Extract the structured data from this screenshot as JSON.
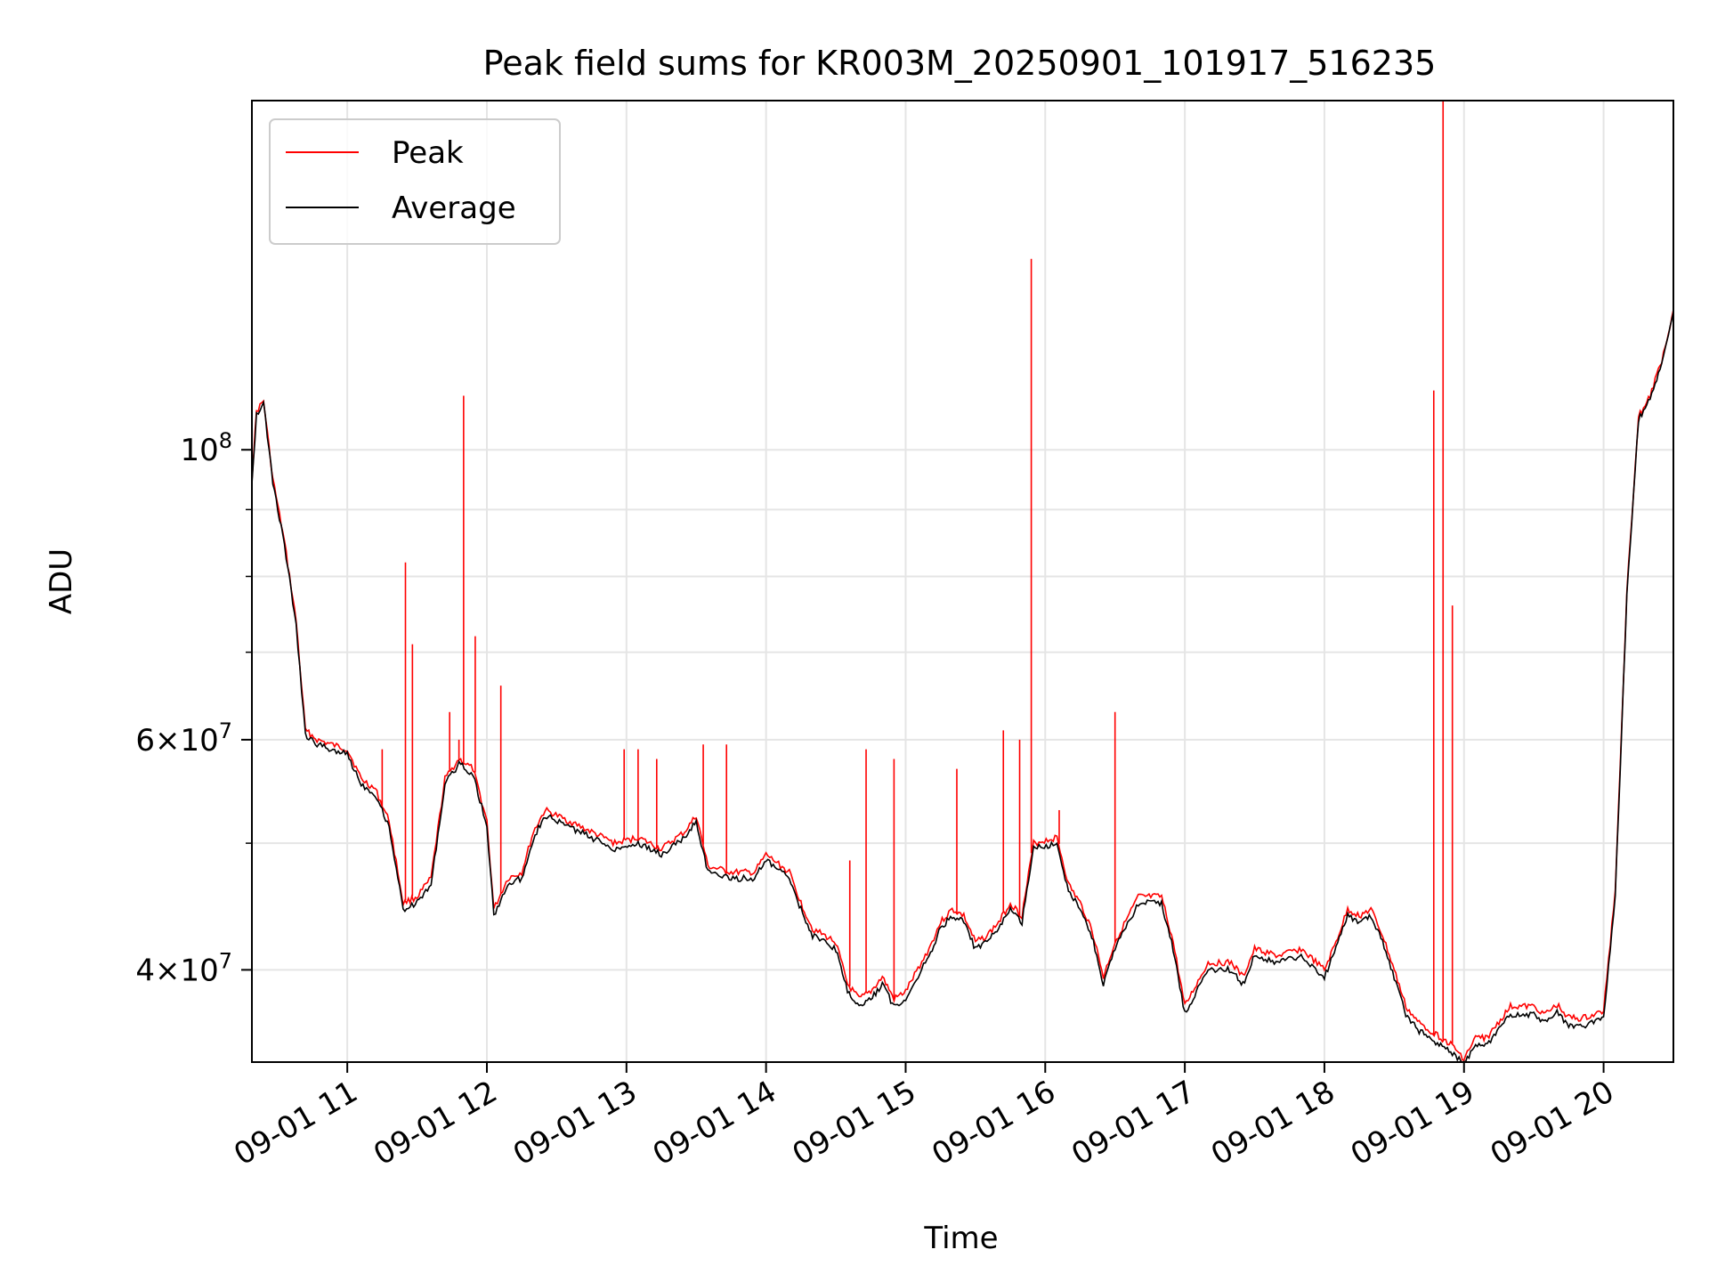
{
  "chart_data": {
    "type": "line",
    "title": "Peak field sums for KR003M_20250901_101917_516235",
    "xlabel": "Time",
    "ylabel": "ADU",
    "x_scale": "time",
    "y_scale": "log",
    "xlim": [
      "2025-09-01 10:19",
      "2025-09-01 20:30"
    ],
    "ylim": [
      34000000,
      185000000
    ],
    "grid": true,
    "legend_position": "upper left",
    "x_ticks": [
      {
        "value": "2025-09-01 11:00",
        "label": "09-01 11"
      },
      {
        "value": "2025-09-01 12:00",
        "label": "09-01 12"
      },
      {
        "value": "2025-09-01 13:00",
        "label": "09-01 13"
      },
      {
        "value": "2025-09-01 14:00",
        "label": "09-01 14"
      },
      {
        "value": "2025-09-01 15:00",
        "label": "09-01 15"
      },
      {
        "value": "2025-09-01 16:00",
        "label": "09-01 16"
      },
      {
        "value": "2025-09-01 17:00",
        "label": "09-01 17"
      },
      {
        "value": "2025-09-01 18:00",
        "label": "09-01 18"
      },
      {
        "value": "2025-09-01 19:00",
        "label": "09-01 19"
      },
      {
        "value": "2025-09-01 20:00",
        "label": "09-01 20"
      }
    ],
    "y_ticks": [
      {
        "value": 40000000,
        "mant": "4",
        "exp": "7"
      },
      {
        "value": 60000000,
        "mant": "6",
        "exp": "7"
      },
      {
        "value": 100000000,
        "mant": "",
        "exp": "8"
      }
    ],
    "y_minor_ticks": [
      50000000,
      70000000,
      80000000,
      90000000
    ],
    "series": [
      {
        "name": "Peak",
        "color": "#ff0000",
        "baseline": [
          [
            "2025-09-01 10:19",
            95000000
          ],
          [
            "2025-09-01 10:21",
            107000000
          ],
          [
            "2025-09-01 10:24",
            109000000
          ],
          [
            "2025-09-01 10:28",
            95000000
          ],
          [
            "2025-09-01 10:33",
            85000000
          ],
          [
            "2025-09-01 10:38",
            74000000
          ],
          [
            "2025-09-01 10:42",
            61000000
          ],
          [
            "2025-09-01 10:47",
            60000000
          ],
          [
            "2025-09-01 10:53",
            59500000
          ],
          [
            "2025-09-01 11:00",
            59000000
          ],
          [
            "2025-09-01 11:06",
            56000000
          ],
          [
            "2025-09-01 11:12",
            55000000
          ],
          [
            "2025-09-01 11:18",
            52000000
          ],
          [
            "2025-09-01 11:24",
            45000000
          ],
          [
            "2025-09-01 11:30",
            45500000
          ],
          [
            "2025-09-01 11:36",
            47000000
          ],
          [
            "2025-09-01 11:42",
            56000000
          ],
          [
            "2025-09-01 11:48",
            58000000
          ],
          [
            "2025-09-01 11:54",
            57000000
          ],
          [
            "2025-09-01 12:00",
            52000000
          ],
          [
            "2025-09-01 12:03",
            44500000
          ],
          [
            "2025-09-01 12:09",
            47000000
          ],
          [
            "2025-09-01 12:15",
            47500000
          ],
          [
            "2025-09-01 12:20",
            51000000
          ],
          [
            "2025-09-01 12:25",
            53000000
          ],
          [
            "2025-09-01 12:35",
            52000000
          ],
          [
            "2025-09-01 12:45",
            51000000
          ],
          [
            "2025-09-01 12:55",
            50000000
          ],
          [
            "2025-09-01 13:05",
            50500000
          ],
          [
            "2025-09-01 13:15",
            49500000
          ],
          [
            "2025-09-01 13:25",
            51000000
          ],
          [
            "2025-09-01 13:30",
            52500000
          ],
          [
            "2025-09-01 13:35",
            48000000
          ],
          [
            "2025-09-01 13:45",
            47500000
          ],
          [
            "2025-09-01 13:55",
            47500000
          ],
          [
            "2025-09-01 14:00",
            49000000
          ],
          [
            "2025-09-01 14:10",
            47500000
          ],
          [
            "2025-09-01 14:15",
            45000000
          ],
          [
            "2025-09-01 14:20",
            43000000
          ],
          [
            "2025-09-01 14:30",
            42000000
          ],
          [
            "2025-09-01 14:35",
            39000000
          ],
          [
            "2025-09-01 14:40",
            38000000
          ],
          [
            "2025-09-01 14:45",
            38500000
          ],
          [
            "2025-09-01 14:50",
            39500000
          ],
          [
            "2025-09-01 14:55",
            38000000
          ],
          [
            "2025-09-01 15:00",
            38500000
          ],
          [
            "2025-09-01 15:10",
            41500000
          ],
          [
            "2025-09-01 15:15",
            43500000
          ],
          [
            "2025-09-01 15:20",
            44500000
          ],
          [
            "2025-09-01 15:25",
            44000000
          ],
          [
            "2025-09-01 15:30",
            42000000
          ],
          [
            "2025-09-01 15:35",
            42500000
          ],
          [
            "2025-09-01 15:40",
            43500000
          ],
          [
            "2025-09-01 15:45",
            45000000
          ],
          [
            "2025-09-01 15:50",
            44000000
          ],
          [
            "2025-09-01 15:55",
            50000000
          ],
          [
            "2025-09-01 16:05",
            50500000
          ],
          [
            "2025-09-01 16:10",
            46500000
          ],
          [
            "2025-09-01 16:15",
            45000000
          ],
          [
            "2025-09-01 16:20",
            43000000
          ],
          [
            "2025-09-01 16:25",
            39500000
          ],
          [
            "2025-09-01 16:30",
            42000000
          ],
          [
            "2025-09-01 16:40",
            45500000
          ],
          [
            "2025-09-01 16:50",
            45500000
          ],
          [
            "2025-09-01 16:55",
            42000000
          ],
          [
            "2025-09-01 17:00",
            37500000
          ],
          [
            "2025-09-01 17:05",
            39000000
          ],
          [
            "2025-09-01 17:10",
            40500000
          ],
          [
            "2025-09-01 17:20",
            40500000
          ],
          [
            "2025-09-01 17:25",
            39500000
          ],
          [
            "2025-09-01 17:30",
            41500000
          ],
          [
            "2025-09-01 17:40",
            41000000
          ],
          [
            "2025-09-01 17:50",
            41500000
          ],
          [
            "2025-09-01 18:00",
            40000000
          ],
          [
            "2025-09-01 18:05",
            42000000
          ],
          [
            "2025-09-01 18:10",
            44500000
          ],
          [
            "2025-09-01 18:15",
            44000000
          ],
          [
            "2025-09-01 18:20",
            44500000
          ],
          [
            "2025-09-01 18:25",
            42500000
          ],
          [
            "2025-09-01 18:30",
            40000000
          ],
          [
            "2025-09-01 18:35",
            37500000
          ],
          [
            "2025-09-01 18:40",
            36500000
          ],
          [
            "2025-09-01 18:45",
            36000000
          ],
          [
            "2025-09-01 18:50",
            35500000
          ],
          [
            "2025-09-01 18:55",
            35000000
          ],
          [
            "2025-09-01 19:00",
            34200000
          ],
          [
            "2025-09-01 19:05",
            35500000
          ],
          [
            "2025-09-01 19:10",
            35500000
          ],
          [
            "2025-09-01 19:15",
            36500000
          ],
          [
            "2025-09-01 19:20",
            37500000
          ],
          [
            "2025-09-01 19:30",
            37500000
          ],
          [
            "2025-09-01 19:35",
            37000000
          ],
          [
            "2025-09-01 19:40",
            37600000
          ],
          [
            "2025-09-01 19:45",
            36800000
          ],
          [
            "2025-09-01 19:50",
            36700000
          ],
          [
            "2025-09-01 19:55",
            36900000
          ],
          [
            "2025-09-01 20:00",
            37200000
          ],
          [
            "2025-09-01 20:05",
            46000000
          ],
          [
            "2025-09-01 20:10",
            78000000
          ],
          [
            "2025-09-01 20:15",
            106000000
          ],
          [
            "2025-09-01 20:20",
            110000000
          ],
          [
            "2025-09-01 20:25",
            117000000
          ],
          [
            "2025-09-01 20:30",
            128000000
          ]
        ],
        "spikes": [
          [
            "2025-09-01 11:15",
            59000000
          ],
          [
            "2025-09-01 11:25",
            82000000
          ],
          [
            "2025-09-01 11:28",
            71000000
          ],
          [
            "2025-09-01 11:44",
            63000000
          ],
          [
            "2025-09-01 11:48",
            60000000
          ],
          [
            "2025-09-01 11:50",
            110000000
          ],
          [
            "2025-09-01 11:55",
            72000000
          ],
          [
            "2025-09-01 12:06",
            66000000
          ],
          [
            "2025-09-01 12:59",
            59000000
          ],
          [
            "2025-09-01 13:05",
            59000000
          ],
          [
            "2025-09-01 13:13",
            58000000
          ],
          [
            "2025-09-01 13:33",
            59500000
          ],
          [
            "2025-09-01 13:43",
            59500000
          ],
          [
            "2025-09-01 14:36",
            48500000
          ],
          [
            "2025-09-01 14:43",
            59000000
          ],
          [
            "2025-09-01 14:55",
            58000000
          ],
          [
            "2025-09-01 15:22",
            57000000
          ],
          [
            "2025-09-01 15:42",
            61000000
          ],
          [
            "2025-09-01 15:49",
            60000000
          ],
          [
            "2025-09-01 15:54",
            140000000
          ],
          [
            "2025-09-01 16:06",
            53000000
          ],
          [
            "2025-09-01 16:30",
            63000000
          ],
          [
            "2025-09-01 18:47",
            111000000
          ],
          [
            "2025-09-01 18:51",
            185000000
          ],
          [
            "2025-09-01 18:55",
            76000000
          ]
        ]
      },
      {
        "name": "Average",
        "color": "#000000",
        "baseline": [
          [
            "2025-09-01 10:19",
            94500000
          ],
          [
            "2025-09-01 10:21",
            106500000
          ],
          [
            "2025-09-01 10:24",
            108500000
          ],
          [
            "2025-09-01 10:28",
            94500000
          ],
          [
            "2025-09-01 10:33",
            84500000
          ],
          [
            "2025-09-01 10:38",
            73500000
          ],
          [
            "2025-09-01 10:42",
            60500000
          ],
          [
            "2025-09-01 10:47",
            59500000
          ],
          [
            "2025-09-01 10:53",
            59000000
          ],
          [
            "2025-09-01 11:00",
            58500000
          ],
          [
            "2025-09-01 11:06",
            55500000
          ],
          [
            "2025-09-01 11:12",
            54500000
          ],
          [
            "2025-09-01 11:18",
            51500000
          ],
          [
            "2025-09-01 11:24",
            44500000
          ],
          [
            "2025-09-01 11:30",
            45000000
          ],
          [
            "2025-09-01 11:36",
            46500000
          ],
          [
            "2025-09-01 11:42",
            55500000
          ],
          [
            "2025-09-01 11:48",
            57500000
          ],
          [
            "2025-09-01 11:54",
            56500000
          ],
          [
            "2025-09-01 12:00",
            51500000
          ],
          [
            "2025-09-01 12:03",
            44000000
          ],
          [
            "2025-09-01 12:09",
            46500000
          ],
          [
            "2025-09-01 12:15",
            47000000
          ],
          [
            "2025-09-01 12:20",
            50500000
          ],
          [
            "2025-09-01 12:25",
            52500000
          ],
          [
            "2025-09-01 12:35",
            51500000
          ],
          [
            "2025-09-01 12:45",
            50500000
          ],
          [
            "2025-09-01 12:55",
            49500000
          ],
          [
            "2025-09-01 13:05",
            50000000
          ],
          [
            "2025-09-01 13:15",
            49000000
          ],
          [
            "2025-09-01 13:25",
            50500000
          ],
          [
            "2025-09-01 13:30",
            52000000
          ],
          [
            "2025-09-01 13:35",
            47500000
          ],
          [
            "2025-09-01 13:45",
            47000000
          ],
          [
            "2025-09-01 13:55",
            47000000
          ],
          [
            "2025-09-01 14:00",
            48500000
          ],
          [
            "2025-09-01 14:10",
            47000000
          ],
          [
            "2025-09-01 14:15",
            44500000
          ],
          [
            "2025-09-01 14:20",
            42500000
          ],
          [
            "2025-09-01 14:30",
            41500000
          ],
          [
            "2025-09-01 14:35",
            38500000
          ],
          [
            "2025-09-01 14:40",
            37500000
          ],
          [
            "2025-09-01 14:45",
            38000000
          ],
          [
            "2025-09-01 14:50",
            39000000
          ],
          [
            "2025-09-01 14:55",
            37500000
          ],
          [
            "2025-09-01 15:00",
            38000000
          ],
          [
            "2025-09-01 15:10",
            41000000
          ],
          [
            "2025-09-01 15:15",
            43000000
          ],
          [
            "2025-09-01 15:20",
            44000000
          ],
          [
            "2025-09-01 15:25",
            43500000
          ],
          [
            "2025-09-01 15:30",
            41500000
          ],
          [
            "2025-09-01 15:35",
            42000000
          ],
          [
            "2025-09-01 15:40",
            43000000
          ],
          [
            "2025-09-01 15:45",
            44500000
          ],
          [
            "2025-09-01 15:50",
            43500000
          ],
          [
            "2025-09-01 15:55",
            49500000
          ],
          [
            "2025-09-01 16:05",
            50000000
          ],
          [
            "2025-09-01 16:10",
            46000000
          ],
          [
            "2025-09-01 16:15",
            44500000
          ],
          [
            "2025-09-01 16:20",
            42500000
          ],
          [
            "2025-09-01 16:25",
            39000000
          ],
          [
            "2025-09-01 16:30",
            41500000
          ],
          [
            "2025-09-01 16:40",
            45000000
          ],
          [
            "2025-09-01 16:50",
            45000000
          ],
          [
            "2025-09-01 16:55",
            41500000
          ],
          [
            "2025-09-01 17:00",
            37000000
          ],
          [
            "2025-09-01 17:05",
            38500000
          ],
          [
            "2025-09-01 17:10",
            40000000
          ],
          [
            "2025-09-01 17:20",
            40000000
          ],
          [
            "2025-09-01 17:25",
            39000000
          ],
          [
            "2025-09-01 17:30",
            41000000
          ],
          [
            "2025-09-01 17:40",
            40500000
          ],
          [
            "2025-09-01 17:50",
            41000000
          ],
          [
            "2025-09-01 18:00",
            39500000
          ],
          [
            "2025-09-01 18:05",
            41500000
          ],
          [
            "2025-09-01 18:10",
            44000000
          ],
          [
            "2025-09-01 18:15",
            43500000
          ],
          [
            "2025-09-01 18:20",
            44000000
          ],
          [
            "2025-09-01 18:25",
            42000000
          ],
          [
            "2025-09-01 18:30",
            39500000
          ],
          [
            "2025-09-01 18:35",
            37000000
          ],
          [
            "2025-09-01 18:40",
            36000000
          ],
          [
            "2025-09-01 18:45",
            35500000
          ],
          [
            "2025-09-01 18:50",
            35000000
          ],
          [
            "2025-09-01 18:55",
            34500000
          ],
          [
            "2025-09-01 19:00",
            34000000
          ],
          [
            "2025-09-01 19:05",
            35000000
          ],
          [
            "2025-09-01 19:10",
            35000000
          ],
          [
            "2025-09-01 19:15",
            36000000
          ],
          [
            "2025-09-01 19:20",
            37000000
          ],
          [
            "2025-09-01 19:30",
            37000000
          ],
          [
            "2025-09-01 19:35",
            36500000
          ],
          [
            "2025-09-01 19:40",
            37100000
          ],
          [
            "2025-09-01 19:45",
            36300000
          ],
          [
            "2025-09-01 19:50",
            36200000
          ],
          [
            "2025-09-01 19:55",
            36400000
          ],
          [
            "2025-09-01 20:00",
            36700000
          ],
          [
            "2025-09-01 20:05",
            45500000
          ],
          [
            "2025-09-01 20:10",
            77500000
          ],
          [
            "2025-09-01 20:15",
            105500000
          ],
          [
            "2025-09-01 20:20",
            109500000
          ],
          [
            "2025-09-01 20:25",
            116500000
          ],
          [
            "2025-09-01 20:30",
            127500000
          ]
        ]
      }
    ]
  }
}
